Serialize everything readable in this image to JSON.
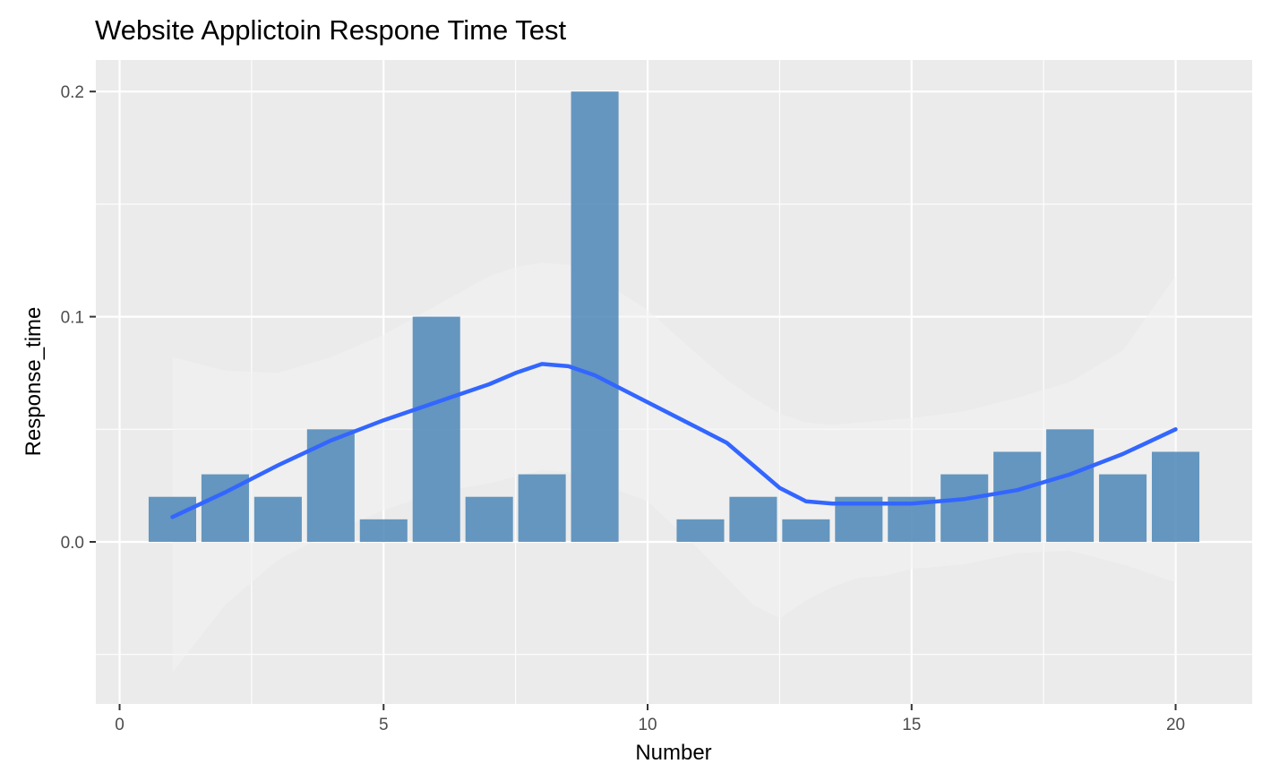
{
  "chart_data": {
    "type": "bar",
    "title": "Website Applictoin Respone Time Test",
    "xlabel": "Number",
    "ylabel": "Response_time",
    "xlim": [
      -0.45,
      21.45
    ],
    "ylim": [
      -0.072,
      0.214
    ],
    "x_ticks": [
      0,
      5,
      10,
      15,
      20
    ],
    "x_tick_labels": [
      "0",
      "5",
      "10",
      "15",
      "20"
    ],
    "y_ticks": [
      0.0,
      0.1,
      0.2
    ],
    "y_tick_labels": [
      "0.0",
      "0.1",
      "0.2"
    ],
    "grid": true,
    "bar_color": "#4682b4",
    "background_color": "#ebebeb",
    "bars": {
      "x": [
        1,
        2,
        3,
        4,
        5,
        6,
        7,
        8,
        9,
        10,
        11,
        12,
        13,
        14,
        15,
        16,
        17,
        18,
        19,
        20
      ],
      "values": [
        0.02,
        0.03,
        0.02,
        0.05,
        0.01,
        0.1,
        0.02,
        0.03,
        0.2,
        0.0,
        0.01,
        0.02,
        0.01,
        0.02,
        0.02,
        0.03,
        0.04,
        0.05,
        0.03,
        0.04
      ]
    },
    "smooth": {
      "color": "#3366ff",
      "x": [
        1,
        2,
        3,
        4,
        5,
        6,
        7,
        7.5,
        8,
        8.5,
        9,
        10,
        11,
        11.5,
        12,
        12.5,
        13,
        13.5,
        14,
        14.5,
        15,
        16,
        17,
        18,
        19,
        20
      ],
      "values": [
        0.011,
        0.022,
        0.034,
        0.045,
        0.054,
        0.062,
        0.07,
        0.075,
        0.079,
        0.078,
        0.074,
        0.062,
        0.05,
        0.044,
        0.034,
        0.024,
        0.018,
        0.017,
        0.017,
        0.017,
        0.017,
        0.019,
        0.023,
        0.03,
        0.039,
        0.05
      ],
      "ci_upper": [
        0.082,
        0.076,
        0.075,
        0.082,
        0.092,
        0.105,
        0.118,
        0.122,
        0.124,
        0.123,
        0.118,
        0.103,
        0.082,
        0.072,
        0.064,
        0.057,
        0.053,
        0.052,
        0.053,
        0.054,
        0.055,
        0.058,
        0.064,
        0.071,
        0.085,
        0.118
      ],
      "ci_lower": [
        -0.058,
        -0.028,
        -0.008,
        0.004,
        0.014,
        0.022,
        0.026,
        0.029,
        0.032,
        0.031,
        0.027,
        0.018,
        -0.004,
        -0.016,
        -0.028,
        -0.034,
        -0.026,
        -0.02,
        -0.016,
        -0.015,
        -0.012,
        -0.01,
        -0.005,
        -0.004,
        -0.01,
        -0.018
      ]
    }
  }
}
